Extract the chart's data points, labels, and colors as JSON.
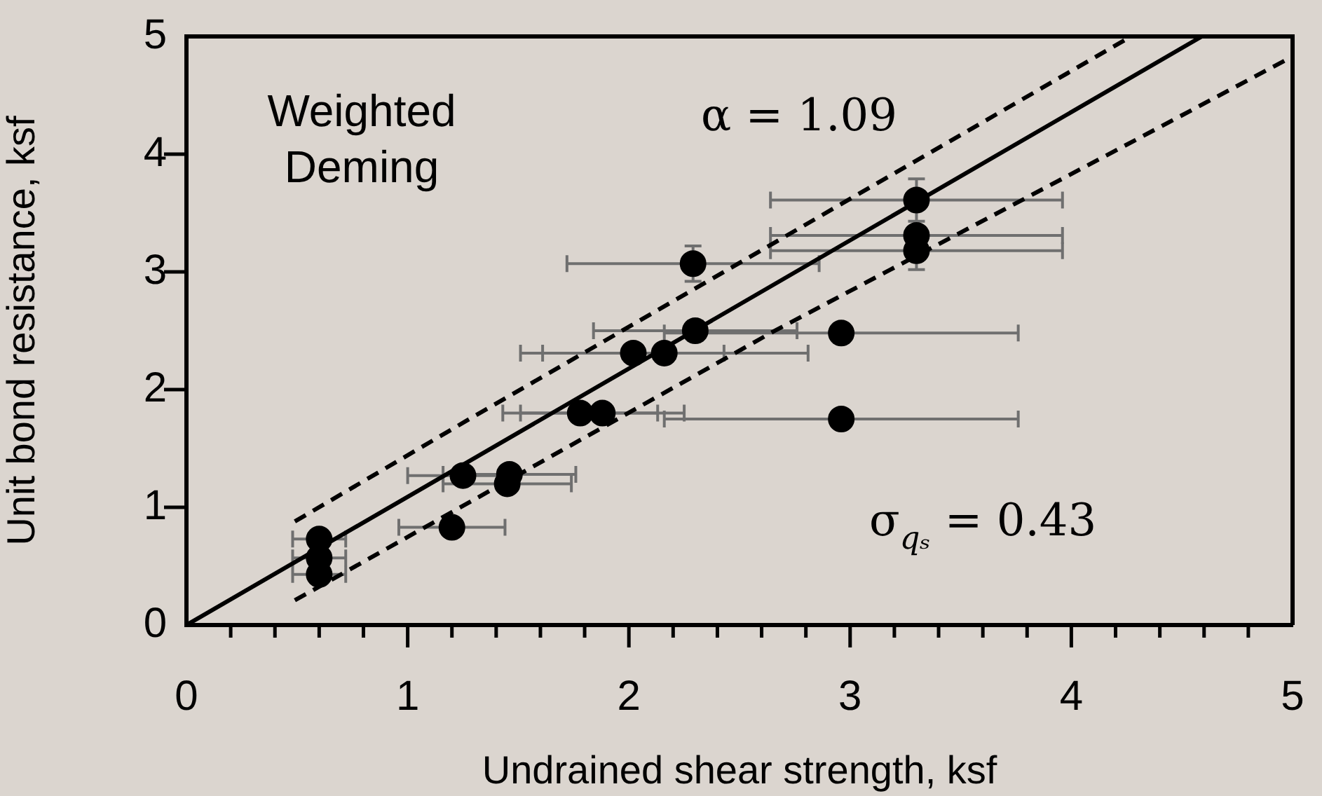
{
  "chart_data": {
    "type": "scatter",
    "xlabel": "Undrained shear strength, ksf",
    "ylabel": "Unit bond resistance, ksf",
    "annotations": [
      "Weighted Deming",
      "α = 1.09",
      "σ$_{qₛ}$ = 0.43"
    ],
    "xlim": [
      0,
      5
    ],
    "ylim": [
      0,
      5
    ],
    "xticks": [
      0,
      {
        "value": 0.2,
        "label": null
      },
      {
        "value": 0.4,
        "label": null
      },
      {
        "value": 0.6,
        "label": null
      },
      {
        "value": 0.8,
        "label": null
      },
      1,
      {
        "value": 1.2,
        "label": null
      },
      {
        "value": 1.4,
        "label": null
      },
      {
        "value": 1.6,
        "label": null
      },
      {
        "value": 1.8,
        "label": null
      },
      2,
      {
        "value": 2.2,
        "label": null
      },
      {
        "value": 2.4,
        "label": null
      },
      {
        "value": 2.6,
        "label": null
      },
      {
        "value": 2.8,
        "label": null
      },
      3,
      {
        "value": 3.2,
        "label": null
      },
      {
        "value": 3.4,
        "label": null
      },
      {
        "value": 3.6,
        "label": null
      },
      {
        "value": 3.8,
        "label": null
      },
      4,
      {
        "value": 4.2,
        "label": null
      },
      {
        "value": 4.4,
        "label": null
      },
      {
        "value": 4.6,
        "label": null
      },
      {
        "value": 4.8,
        "label": null
      },
      5
    ],
    "yticks": [
      0,
      1,
      2,
      3,
      4,
      5
    ],
    "grid": false,
    "legend": false,
    "series": [
      {
        "type": "scatter",
        "color": "#000000",
        "marker": "circle",
        "x": [
          0.6,
          0.6,
          0.6,
          1.2,
          1.25,
          1.45,
          1.46,
          1.78,
          1.88,
          2.02,
          2.16,
          2.3,
          2.96,
          2.29,
          2.96,
          3.3,
          3.3,
          3.3
        ],
        "values": [
          0.73,
          0.57,
          0.43,
          0.83,
          1.27,
          1.2,
          1.28,
          1.8,
          1.8,
          2.31,
          2.31,
          2.5,
          2.48,
          3.07,
          1.75,
          3.61,
          3.31,
          3.18
        ],
        "xerrors": [
          0.12,
          0.12,
          0.12,
          0.24,
          0.25,
          0.29,
          0.3,
          0.35,
          0.37,
          0.41,
          0.65,
          0.46,
          0.8,
          0.57,
          0.8,
          0.66,
          0.66,
          0.66
        ],
        "errors": [
          null,
          null,
          null,
          null,
          null,
          null,
          null,
          null,
          null,
          null,
          null,
          0.08,
          0.08,
          0.15,
          null,
          0.18,
          null,
          0.16
        ]
      },
      {
        "type": "line",
        "color": "#000000",
        "line_style": "solid",
        "marker": "none",
        "x": [
          0,
          4.59
        ],
        "values": [
          0,
          5
        ]
      },
      {
        "type": "line",
        "color": "#000000",
        "line_style": "dashed",
        "marker": "none",
        "x": [
          0.49,
          1.27,
          4.27
        ],
        "values": [
          0.88,
          1.74,
          5
        ]
      },
      {
        "type": "line",
        "color": "#000000",
        "line_style": "dashed",
        "marker": "none",
        "x": [
          0.49,
          2.65,
          4.29,
          5
        ],
        "values": [
          0.21,
          2.49,
          4.12,
          4.83
        ]
      }
    ]
  }
}
